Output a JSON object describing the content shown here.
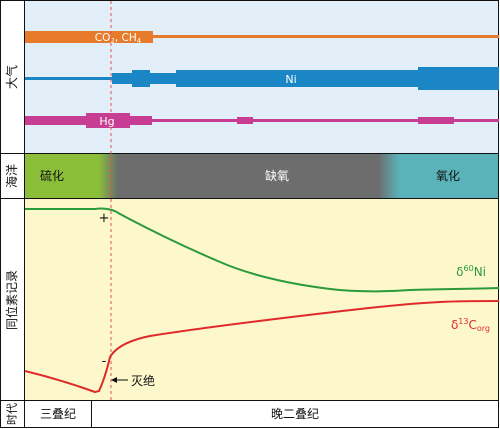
{
  "rows": {
    "atmosphere": "大气",
    "ocean": "海洋",
    "isotope": "同位素记录",
    "age": "时代"
  },
  "atmosphere": {
    "co2_ch4": {
      "base": "CO",
      "sub1": "2",
      "mid": ", CH",
      "sub2": "4",
      "color": "#e87b2b"
    },
    "ni": {
      "text": "Ni",
      "color": "#1a86c6"
    },
    "hg": {
      "text": "Hg",
      "color": "#c63d93"
    }
  },
  "ocean": {
    "sulfidic": {
      "text": "硫化",
      "color": "#8bbf3a"
    },
    "anoxic": {
      "text": "缺氧",
      "color": "#6d6d6d"
    },
    "oxic": {
      "text": "氧化",
      "color": "#5ab3b9"
    }
  },
  "isotope": {
    "ni_label": {
      "delta": "δ",
      "sup": "60",
      "rest": "Ni",
      "color": "#2b9a3a"
    },
    "c_label": {
      "delta": "δ",
      "sup": "13",
      "rest": "C",
      "sub": "org",
      "color": "#e02a2a"
    },
    "plus": "+",
    "minus": "-",
    "extinction": "灭绝",
    "background": "#fdf8cc"
  },
  "periods": {
    "triassic": "三叠纪",
    "late_permian": "晚二叠纪"
  }
}
